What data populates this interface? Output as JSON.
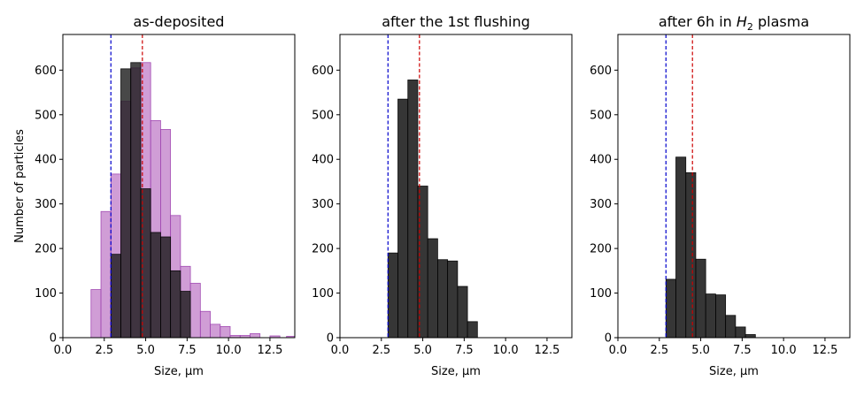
{
  "chart_data": [
    {
      "type": "bar",
      "title": "as-deposited",
      "xlabel": "Size, μm",
      "ylabel": "Number of particles",
      "xlim": [
        0,
        14
      ],
      "ylim": [
        0,
        680
      ],
      "xticks": [
        0.0,
        2.5,
        5.0,
        7.5,
        10.0,
        12.5
      ],
      "xtick_labels": [
        "0.0",
        "2.5",
        "5.0",
        "7.5",
        "10.0",
        "12.5"
      ],
      "yticks": [
        0,
        100,
        200,
        300,
        400,
        500,
        600
      ],
      "vlines": [
        {
          "x": 2.9,
          "color": "#0000cc"
        },
        {
          "x": 4.8,
          "color": "#cc0000"
        }
      ],
      "series": [
        {
          "color": "#c07cc8",
          "edge": "#9b3fae",
          "opacity": 0.75,
          "bin_width": 0.6,
          "bins": [
            {
              "x": 1.7,
              "y": 108
            },
            {
              "x": 2.3,
              "y": 283
            },
            {
              "x": 2.9,
              "y": 367
            },
            {
              "x": 3.5,
              "y": 530
            },
            {
              "x": 4.1,
              "y": 605
            },
            {
              "x": 4.7,
              "y": 617
            },
            {
              "x": 5.3,
              "y": 487
            },
            {
              "x": 5.9,
              "y": 467
            },
            {
              "x": 6.5,
              "y": 274
            },
            {
              "x": 7.1,
              "y": 160
            },
            {
              "x": 7.7,
              "y": 122
            },
            {
              "x": 8.3,
              "y": 59
            },
            {
              "x": 8.9,
              "y": 30
            },
            {
              "x": 9.5,
              "y": 25
            },
            {
              "x": 10.1,
              "y": 5
            },
            {
              "x": 10.7,
              "y": 5
            },
            {
              "x": 11.3,
              "y": 9
            },
            {
              "x": 12.5,
              "y": 4
            },
            {
              "x": 13.5,
              "y": 3
            }
          ]
        },
        {
          "color": "#1a1a1a",
          "edge": "#000000",
          "opacity": 0.8,
          "bin_width": 0.6,
          "bins": [
            {
              "x": 2.9,
              "y": 187
            },
            {
              "x": 3.5,
              "y": 603
            },
            {
              "x": 4.1,
              "y": 617
            },
            {
              "x": 4.7,
              "y": 334
            },
            {
              "x": 5.3,
              "y": 236
            },
            {
              "x": 5.9,
              "y": 226
            },
            {
              "x": 6.5,
              "y": 150
            },
            {
              "x": 7.1,
              "y": 104
            }
          ]
        }
      ]
    },
    {
      "type": "bar",
      "title": "after the 1st flushing",
      "xlabel": "Size, μm",
      "xlim": [
        0,
        14
      ],
      "ylim": [
        0,
        680
      ],
      "xticks": [
        0.0,
        2.5,
        5.0,
        7.5,
        10.0,
        12.5
      ],
      "xtick_labels": [
        "0.0",
        "2.5",
        "5.0",
        "7.5",
        "10.0",
        "12.5"
      ],
      "yticks": [
        0,
        100,
        200,
        300,
        400,
        500,
        600
      ],
      "vlines": [
        {
          "x": 2.9,
          "color": "#0000cc"
        },
        {
          "x": 4.8,
          "color": "#cc0000"
        }
      ],
      "series": [
        {
          "color": "#1a1a1a",
          "edge": "#000000",
          "opacity": 0.88,
          "bin_width": 0.6,
          "bins": [
            {
              "x": 2.9,
              "y": 190
            },
            {
              "x": 3.5,
              "y": 535
            },
            {
              "x": 4.1,
              "y": 578
            },
            {
              "x": 4.7,
              "y": 340
            },
            {
              "x": 5.3,
              "y": 222
            },
            {
              "x": 5.9,
              "y": 175
            },
            {
              "x": 6.5,
              "y": 172
            },
            {
              "x": 7.1,
              "y": 115
            },
            {
              "x": 7.7,
              "y": 36
            }
          ]
        }
      ]
    },
    {
      "type": "bar",
      "title_prefix": "after 6h in ",
      "title_var": "H",
      "title_sub": "2",
      "title_suffix": " plasma",
      "xlabel": "Size, μm",
      "xlim": [
        0,
        14
      ],
      "ylim": [
        0,
        680
      ],
      "xticks": [
        0.0,
        2.5,
        5.0,
        7.5,
        10.0,
        12.5
      ],
      "xtick_labels": [
        "0.0",
        "2.5",
        "5.0",
        "7.5",
        "10.0",
        "12.5"
      ],
      "yticks": [
        0,
        100,
        200,
        300,
        400,
        500,
        600
      ],
      "vlines": [
        {
          "x": 2.9,
          "color": "#0000cc"
        },
        {
          "x": 4.5,
          "color": "#cc0000"
        }
      ],
      "series": [
        {
          "color": "#1a1a1a",
          "edge": "#000000",
          "opacity": 0.88,
          "bin_width": 0.6,
          "bins": [
            {
              "x": 2.9,
              "y": 131
            },
            {
              "x": 3.5,
              "y": 405
            },
            {
              "x": 4.1,
              "y": 370
            },
            {
              "x": 4.7,
              "y": 176
            },
            {
              "x": 5.3,
              "y": 98
            },
            {
              "x": 5.9,
              "y": 96
            },
            {
              "x": 6.5,
              "y": 50
            },
            {
              "x": 7.1,
              "y": 24
            },
            {
              "x": 7.7,
              "y": 7
            }
          ]
        }
      ]
    }
  ]
}
